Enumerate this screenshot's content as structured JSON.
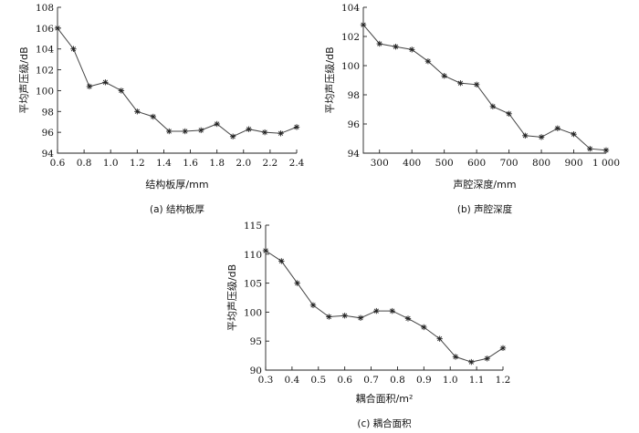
{
  "chart_data": [
    {
      "type": "line",
      "xlabel": "结构板厚/mm",
      "ylabel": "平均声压级/dB",
      "caption": "(a)  结构板厚",
      "xlim": [
        0.6,
        2.4
      ],
      "ylim": [
        94,
        108
      ],
      "xticks": [
        0.6,
        0.8,
        1.0,
        1.2,
        1.4,
        1.6,
        1.8,
        2.0,
        2.2,
        2.4
      ],
      "xtick_labels": [
        "0.6",
        "0.8",
        "1.0",
        "1.2",
        "1.4",
        "1.6",
        "1.8",
        "2.0",
        "2.2",
        "2.4"
      ],
      "yticks": [
        94,
        96,
        98,
        100,
        102,
        104,
        106,
        108
      ],
      "ytick_labels": [
        "94",
        "96",
        "98",
        "100",
        "102",
        "104",
        "106",
        "108"
      ],
      "x": [
        0.6,
        0.72,
        0.84,
        0.96,
        1.08,
        1.2,
        1.32,
        1.44,
        1.56,
        1.68,
        1.8,
        1.92,
        2.04,
        2.16,
        2.28,
        2.4
      ],
      "y": [
        106.0,
        104.0,
        100.4,
        100.8,
        100.0,
        98.0,
        97.5,
        96.1,
        96.1,
        96.2,
        96.8,
        95.6,
        96.3,
        96.0,
        95.9,
        96.5
      ]
    },
    {
      "type": "line",
      "xlabel": "声腔深度/mm",
      "ylabel": "平均声压级/dB",
      "caption": "(b)  声腔深度",
      "xlim": [
        250,
        1000
      ],
      "ylim": [
        94,
        104
      ],
      "xticks": [
        300,
        400,
        500,
        600,
        700,
        800,
        900,
        1000
      ],
      "xtick_labels": [
        "300",
        "400",
        "500",
        "600",
        "700",
        "800",
        "900",
        "1 000"
      ],
      "yticks": [
        94,
        96,
        98,
        100,
        102,
        104
      ],
      "ytick_labels": [
        "94",
        "96",
        "98",
        "100",
        "102",
        "104"
      ],
      "x": [
        250,
        300,
        350,
        400,
        450,
        500,
        550,
        600,
        650,
        700,
        750,
        800,
        850,
        900,
        950,
        1000
      ],
      "y": [
        102.8,
        101.5,
        101.3,
        101.1,
        100.3,
        99.3,
        98.8,
        98.7,
        97.2,
        96.7,
        95.2,
        95.1,
        95.7,
        95.3,
        94.3,
        94.2
      ]
    },
    {
      "type": "line",
      "xlabel": "耦合面积/m²",
      "ylabel": "平均声压级/dB",
      "caption": "(c)  耦合面积",
      "xlim": [
        0.3,
        1.2
      ],
      "ylim": [
        90,
        115
      ],
      "xticks": [
        0.3,
        0.4,
        0.5,
        0.6,
        0.7,
        0.8,
        0.9,
        1.0,
        1.1,
        1.2
      ],
      "xtick_labels": [
        "0.3",
        "0.4",
        "0.5",
        "0.6",
        "0.7",
        "0.8",
        "0.9",
        "1.0",
        "1.1",
        "1.2"
      ],
      "yticks": [
        90,
        95,
        100,
        105,
        110,
        115
      ],
      "ytick_labels": [
        "90",
        "95",
        "100",
        "105",
        "110",
        "115"
      ],
      "x": [
        0.3,
        0.36,
        0.42,
        0.48,
        0.54,
        0.6,
        0.66,
        0.72,
        0.78,
        0.84,
        0.9,
        0.96,
        1.02,
        1.08,
        1.14,
        1.2
      ],
      "y": [
        110.6,
        108.8,
        105.0,
        101.2,
        99.2,
        99.4,
        99.0,
        100.2,
        100.2,
        98.9,
        97.4,
        95.4,
        92.3,
        91.4,
        92.0,
        93.8
      ]
    }
  ]
}
